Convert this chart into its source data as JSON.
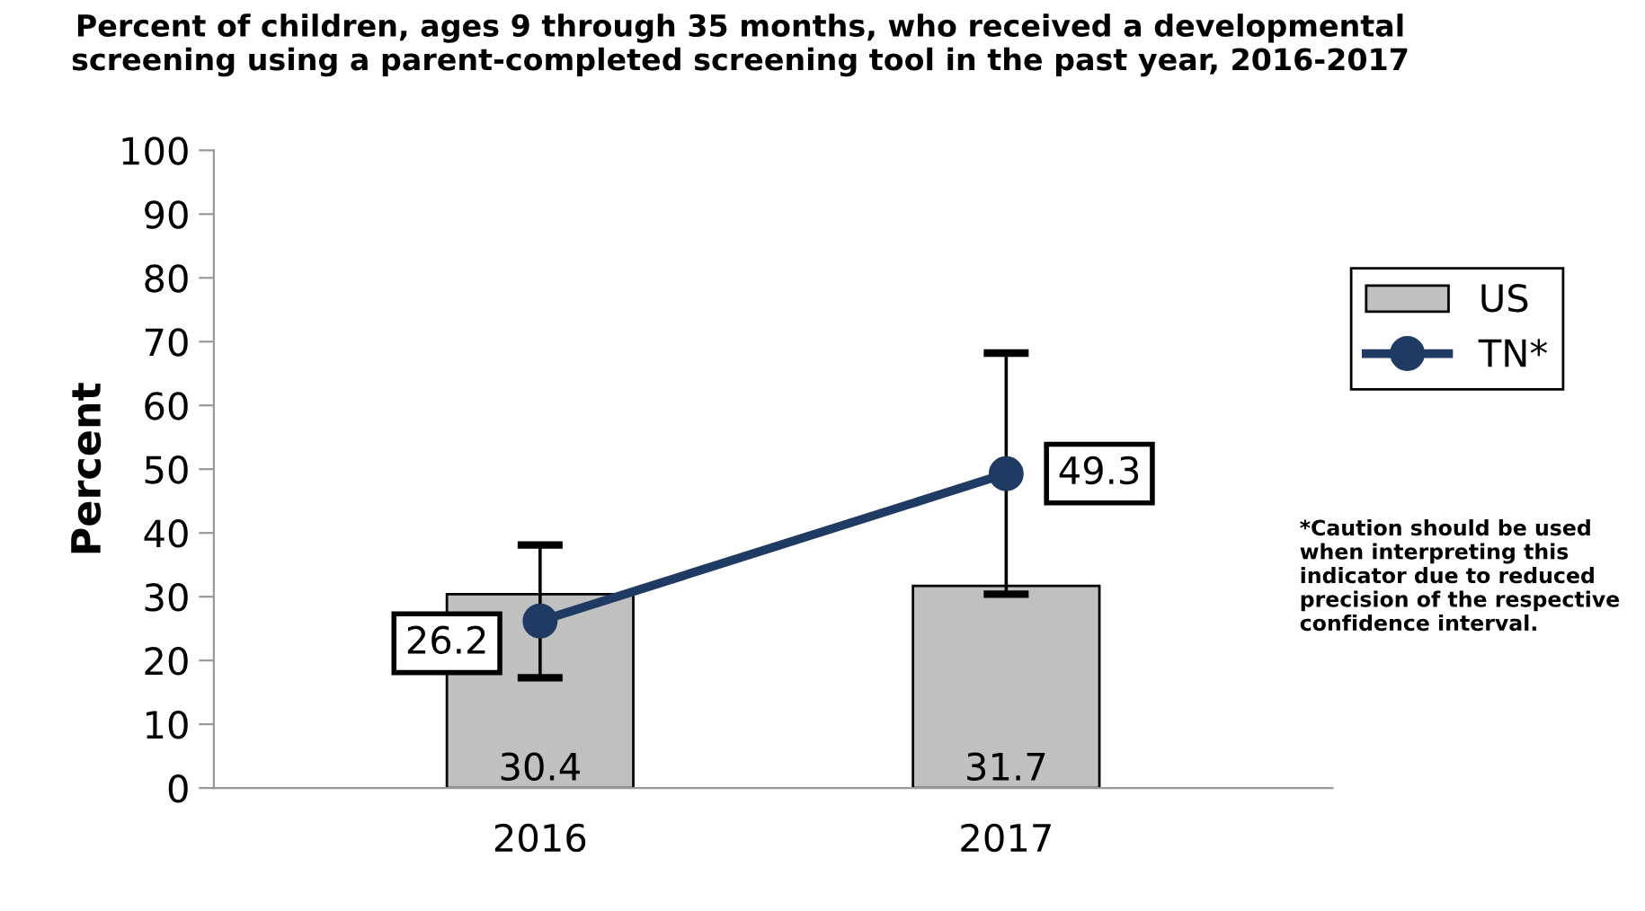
{
  "chart_data": {
    "type": "bar",
    "title": "Percent of children, ages 9 through 35 months, who received a developmental screening using a parent-completed screening tool in the past year, 2016-2017",
    "ylabel": "Percent",
    "categories": [
      "2016",
      "2017"
    ],
    "series": [
      {
        "name": "US",
        "color": "#c0c0c0",
        "values": [
          30.4,
          31.7
        ]
      },
      {
        "name": "TN*",
        "type": "line",
        "color": "#1f3b63",
        "values": [
          26.2,
          49.3
        ],
        "errors": [
          [
            17.3,
            38.1
          ],
          [
            30.4,
            68.2
          ]
        ],
        "marker": "circle",
        "line_style": "solid"
      }
    ],
    "ylim": [
      0,
      100
    ],
    "yticks": [
      0,
      10,
      20,
      30,
      40,
      50,
      60,
      70,
      80,
      90,
      100
    ],
    "grid": false,
    "legend": "right",
    "data_labels": true,
    "annotations": [
      "*Caution should be used when interpreting this indicator due to reduced precision of the respective confidence interval."
    ]
  }
}
